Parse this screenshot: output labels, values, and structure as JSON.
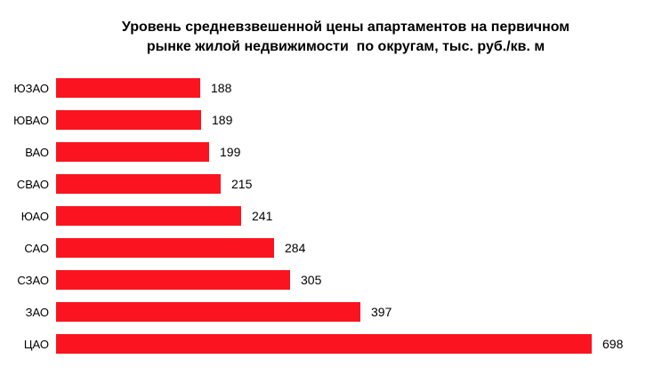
{
  "chart_data": {
    "type": "bar",
    "orientation": "horizontal",
    "title": "Уровень средневзвешенной цены апартаментов на первичном\nрынке жилой недвижимости  по округам, тыс. руб./кв. м",
    "categories": [
      "ЮЗАО",
      "ЮВАО",
      "ВАО",
      "СВАО",
      "ЮАО",
      "САО",
      "СЗАО",
      "ЗАО",
      "ЦАО"
    ],
    "values": [
      188,
      189,
      199,
      215,
      241,
      284,
      305,
      397,
      698
    ],
    "value_labels": [
      "188",
      "189",
      "199",
      "215",
      "241",
      "284",
      "305",
      "397",
      "698"
    ],
    "xlabel": "",
    "ylabel": "",
    "xlim": [
      0,
      720
    ],
    "bar_color": "#fb141f",
    "text_color": "#000000",
    "background_color": "#ffffff",
    "grid": false,
    "legend": false,
    "value_labels_shown": true
  }
}
